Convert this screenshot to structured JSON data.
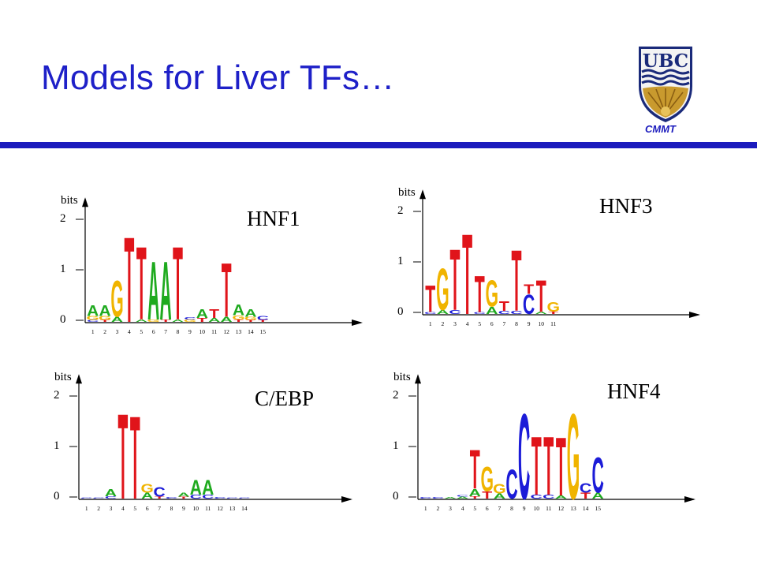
{
  "slide": {
    "title": "Models for Liver TFs…",
    "org_label": "CMMT",
    "logo_text": "UBC"
  },
  "colors": {
    "A": "#1faa1f",
    "C": "#1c1cd8",
    "G": "#f0b400",
    "T": "#e0141a",
    "title": "#1e20c8",
    "rule": "#1b1bbd"
  },
  "axis": {
    "ylabel": "bits",
    "yticks": [
      "0",
      "1",
      "2"
    ]
  },
  "logos": [
    {
      "name": "HNF1",
      "positions": [
        "1",
        "2",
        "3",
        "4",
        "5",
        "6",
        "7",
        "8",
        "9",
        "10",
        "11",
        "12",
        "13",
        "14",
        "15"
      ],
      "columns": [
        [
          [
            "C",
            0.04
          ],
          [
            "G",
            0.08
          ],
          [
            "A",
            0.22
          ]
        ],
        [
          [
            "T",
            0.04
          ],
          [
            "G",
            0.08
          ],
          [
            "A",
            0.22
          ]
        ],
        [
          [
            "A",
            0.1
          ],
          [
            "G",
            0.75
          ]
        ],
        [
          [
            "T",
            1.75
          ]
        ],
        [
          [
            "A",
            0.05
          ],
          [
            "T",
            1.5
          ]
        ],
        [
          [
            "G",
            0.05
          ],
          [
            "A",
            1.2
          ]
        ],
        [
          [
            "T",
            0.05
          ],
          [
            "A",
            1.2
          ]
        ],
        [
          [
            "A",
            0.05
          ],
          [
            "T",
            1.5
          ]
        ],
        [
          [
            "G",
            0.05
          ],
          [
            "C",
            0.05
          ]
        ],
        [
          [
            "T",
            0.08
          ],
          [
            "A",
            0.18
          ]
        ],
        [
          [
            "A",
            0.08
          ],
          [
            "T",
            0.18
          ]
        ],
        [
          [
            "A",
            0.1
          ],
          [
            "T",
            1.1
          ]
        ],
        [
          [
            "T",
            0.05
          ],
          [
            "G",
            0.08
          ],
          [
            "A",
            0.22
          ]
        ],
        [
          [
            "T",
            0.04
          ],
          [
            "G",
            0.06
          ],
          [
            "A",
            0.16
          ]
        ],
        [
          [
            "T",
            0.04
          ],
          [
            "C",
            0.08
          ]
        ]
      ]
    },
    {
      "name": "HNF3",
      "positions": [
        "1",
        "2",
        "3",
        "4",
        "5",
        "6",
        "7",
        "8",
        "9",
        "10",
        "11"
      ],
      "columns": [
        [
          [
            "C",
            0.04
          ],
          [
            "T",
            0.55
          ]
        ],
        [
          [
            "A",
            0.08
          ],
          [
            "G",
            0.85
          ]
        ],
        [
          [
            "C",
            0.08
          ],
          [
            "T",
            1.25
          ]
        ],
        [
          [
            "T",
            1.65
          ]
        ],
        [
          [
            "C",
            0.04
          ],
          [
            "T",
            0.75
          ]
        ],
        [
          [
            "A",
            0.15
          ],
          [
            "G",
            0.55
          ]
        ],
        [
          [
            "C",
            0.06
          ],
          [
            "T",
            0.2
          ]
        ],
        [
          [
            "C",
            0.06
          ],
          [
            "T",
            1.25
          ]
        ],
        [
          [
            "C",
            0.4
          ],
          [
            "T",
            0.2
          ]
        ],
        [
          [
            "A",
            0.05
          ],
          [
            "T",
            0.65
          ]
        ],
        [
          [
            "T",
            0.05
          ],
          [
            "G",
            0.2
          ]
        ]
      ]
    },
    {
      "name": "C/EBP",
      "positions": [
        "1",
        "2",
        "3",
        "4",
        "5",
        "6",
        "7",
        "8",
        "9",
        "10",
        "11",
        "12",
        "13",
        "14"
      ],
      "columns": [
        [
          [
            "C",
            0.02
          ]
        ],
        [
          [
            "C",
            0.02
          ]
        ],
        [
          [
            "C",
            0.05
          ],
          [
            "A",
            0.15
          ]
        ],
        [
          [
            "T",
            1.75
          ]
        ],
        [
          [
            "T",
            1.7
          ]
        ],
        [
          [
            "A",
            0.12
          ],
          [
            "G",
            0.18
          ]
        ],
        [
          [
            "T",
            0.04
          ],
          [
            "C",
            0.2
          ]
        ],
        [
          [
            "C",
            0.03
          ]
        ],
        [
          [
            "T",
            0.04
          ],
          [
            "A",
            0.08
          ]
        ],
        [
          [
            "C",
            0.08
          ],
          [
            "A",
            0.3
          ]
        ],
        [
          [
            "C",
            0.08
          ],
          [
            "A",
            0.3
          ]
        ],
        [
          [
            "C",
            0.03
          ]
        ],
        [
          [
            "C",
            0.02
          ]
        ],
        [
          [
            "C",
            0.02
          ]
        ]
      ]
    },
    {
      "name": "HNF4",
      "positions": [
        "1",
        "2",
        "3",
        "4",
        "5",
        "6",
        "7",
        "8",
        "9",
        "10",
        "11",
        "12",
        "13",
        "14",
        "15"
      ],
      "columns": [
        [
          [
            "C",
            0.03
          ]
        ],
        [
          [
            "C",
            0.03
          ]
        ],
        [
          [
            "A",
            0.03
          ]
        ],
        [
          [
            "A",
            0.04
          ],
          [
            "C",
            0.03
          ]
        ],
        [
          [
            "T",
            0.05
          ],
          [
            "A",
            0.15
          ],
          [
            "T",
            0.8
          ]
        ],
        [
          [
            "T",
            0.15
          ],
          [
            "G",
            0.5
          ]
        ],
        [
          [
            "A",
            0.1
          ],
          [
            "G",
            0.2
          ]
        ],
        [
          [
            "C",
            0.6
          ]
        ],
        [
          [
            "C",
            1.75
          ]
        ],
        [
          [
            "C",
            0.08
          ],
          [
            "T",
            1.2
          ]
        ],
        [
          [
            "C",
            0.08
          ],
          [
            "T",
            1.2
          ]
        ],
        [
          [
            "A",
            0.06
          ],
          [
            "T",
            1.2
          ]
        ],
        [
          [
            "G",
            1.75
          ]
        ],
        [
          [
            "T",
            0.12
          ],
          [
            "C",
            0.2
          ]
        ],
        [
          [
            "A",
            0.12
          ],
          [
            "C",
            0.72
          ]
        ]
      ]
    }
  ]
}
